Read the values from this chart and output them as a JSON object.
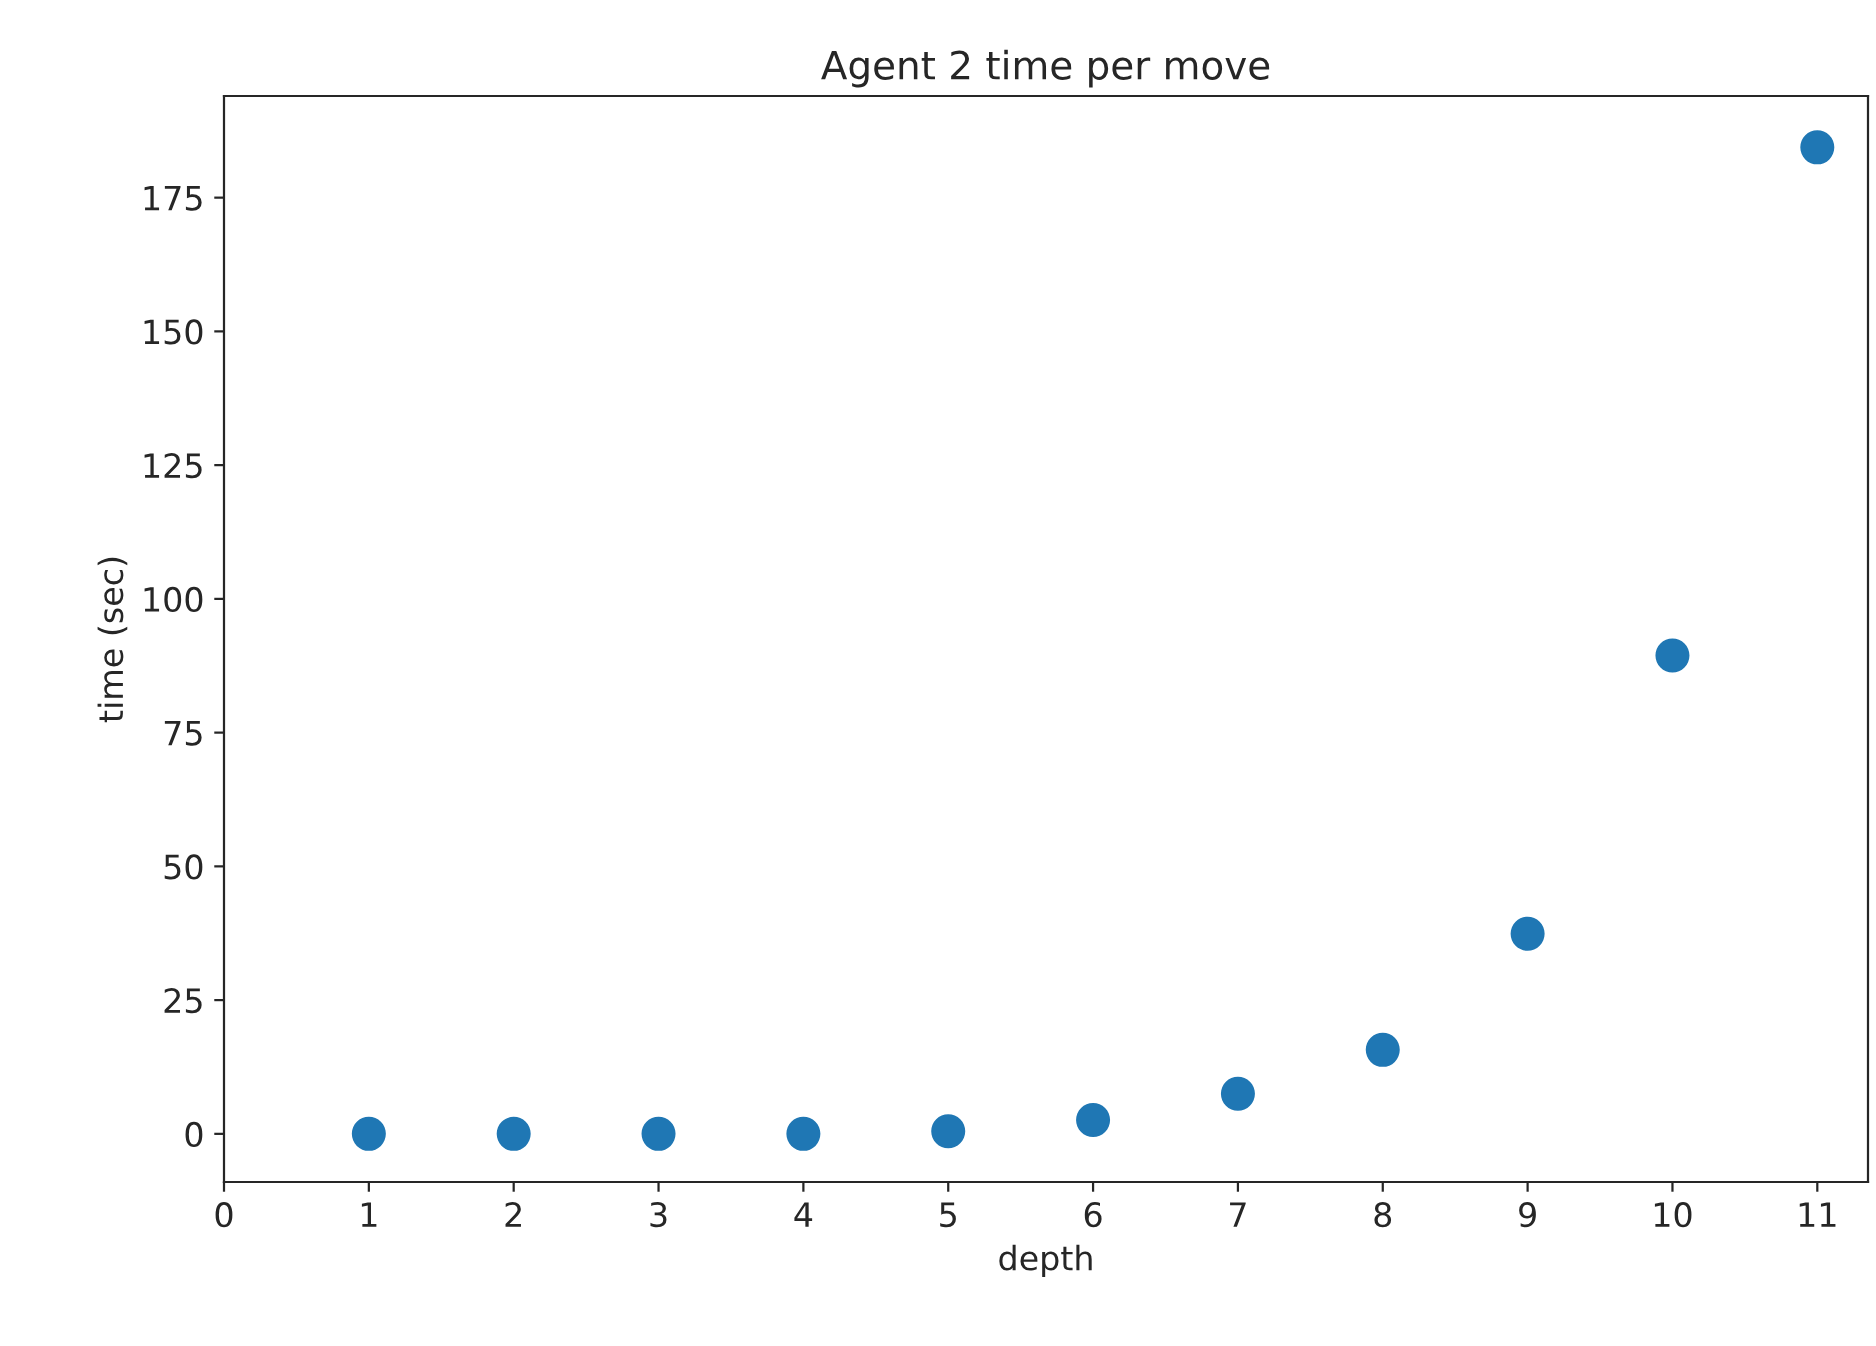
{
  "chart_data": {
    "type": "scatter",
    "title": "Agent 2 time per move",
    "xlabel": "depth",
    "ylabel": "time (sec)",
    "x": [
      1,
      2,
      3,
      4,
      5,
      6,
      7,
      8,
      9,
      10,
      11
    ],
    "series": [
      {
        "color": "#1f77b4",
        "values": [
          0,
          0,
          0,
          0,
          0.5,
          2.6,
          7.5,
          15.7,
          37.4,
          89.4,
          184.4
        ]
      }
    ],
    "xlim": [
      0,
      11.35
    ],
    "ylim": [
      -9,
      194
    ],
    "xticks": [
      0,
      1,
      2,
      3,
      4,
      5,
      6,
      7,
      8,
      9,
      10,
      11
    ],
    "yticks": [
      0,
      25,
      50,
      75,
      100,
      125,
      150,
      175
    ],
    "marker": "circle",
    "grid": false
  }
}
